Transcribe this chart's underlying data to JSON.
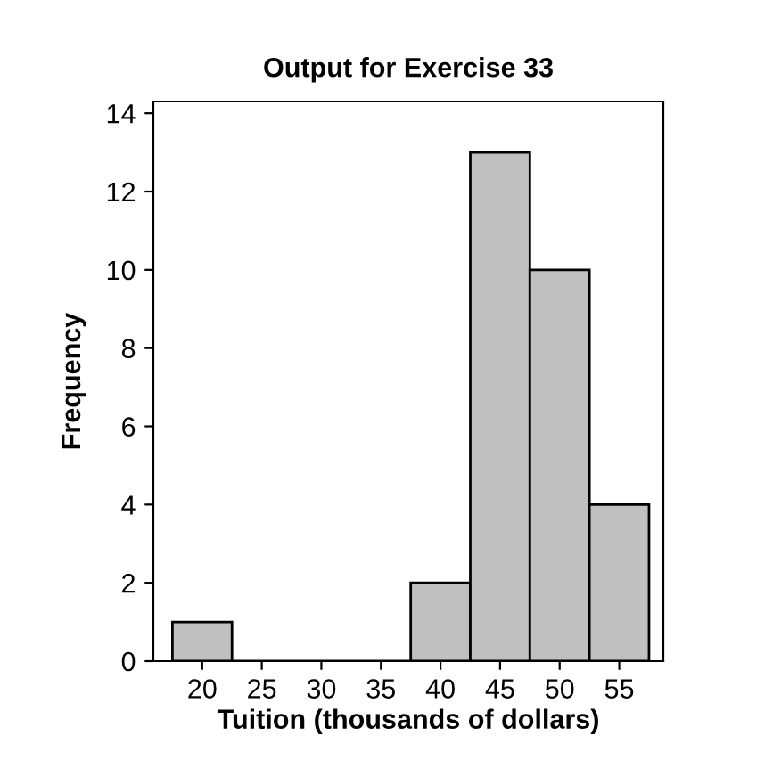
{
  "chart_data": {
    "type": "histogram",
    "title": "Output for Exercise 33",
    "xlabel": "Tuition (thousands of dollars)",
    "ylabel": "Frequency",
    "bins": [
      17.5,
      22.5,
      27.5,
      32.5,
      37.5,
      42.5,
      47.5,
      52.5,
      57.5
    ],
    "values": [
      1,
      0,
      0,
      0,
      2,
      13,
      10,
      4
    ],
    "color": "#c0c0c0",
    "xlim": [
      15.9,
      58.7
    ],
    "xticks": [
      20,
      25,
      30,
      35,
      40,
      45,
      50,
      55
    ],
    "ylim": [
      0,
      14.3
    ],
    "yticks": [
      0,
      2,
      4,
      6,
      8,
      10,
      12,
      14
    ],
    "grid": false
  }
}
